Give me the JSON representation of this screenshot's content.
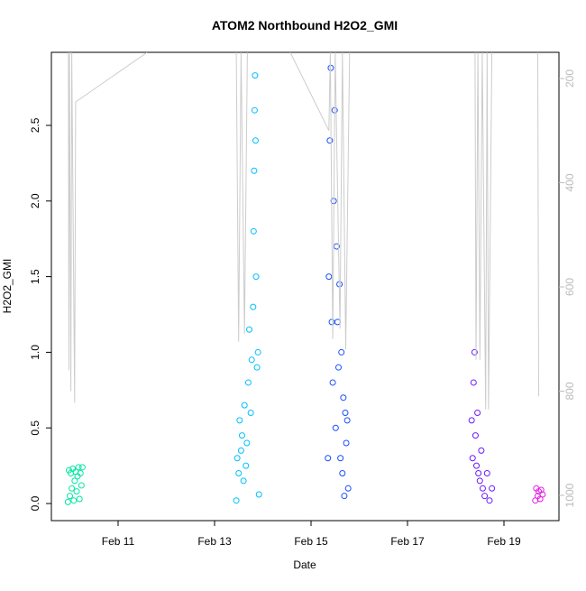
{
  "chart_data": {
    "type": "scatter",
    "title": "ATOM2 Northbound H2O2_GMI",
    "x_label": "Date",
    "y_label": "H2O2_GMI",
    "xlim": [
      9.617,
      20.14
    ],
    "xticks": [
      {
        "value": 11,
        "label": "Feb 11"
      },
      {
        "value": 13,
        "label": "Feb 13"
      },
      {
        "value": 15,
        "label": "Feb 15"
      },
      {
        "value": 17,
        "label": "Feb 17"
      },
      {
        "value": 19,
        "label": "Feb 19"
      }
    ],
    "ylim": [
      -0.113,
      2.983
    ],
    "yticks": [
      {
        "value": 0,
        "label": "0.0"
      },
      0.5,
      {
        "value": 1,
        "label": "1.0"
      },
      1.5,
      {
        "value": 2,
        "label": "2.0"
      },
      2.5
    ],
    "y2lim": [
      1048.5,
      149.8
    ],
    "y2ticks": [
      200,
      400,
      600,
      800,
      1000
    ],
    "y2_color": "#bbbbbb",
    "series": [
      {
        "color": "#00e6a0",
        "x": [
          9.96,
          9.98,
          10.0,
          10.02,
          10.04,
          10.06,
          10.08,
          10.1,
          10.12,
          10.14,
          10.16,
          10.18,
          10.2,
          10.22,
          10.24,
          10.26
        ],
        "values": [
          0.01,
          0.22,
          0.05,
          0.2,
          0.1,
          0.23,
          0.02,
          0.15,
          0.21,
          0.08,
          0.18,
          0.24,
          0.03,
          0.2,
          0.12,
          0.24
        ]
      },
      {
        "color": "#00bfff",
        "x": [
          13.45,
          13.47,
          13.5,
          13.52,
          13.55,
          13.57,
          13.6,
          13.62,
          13.65,
          13.67,
          13.7,
          13.72,
          13.75,
          13.77,
          13.8,
          13.81,
          13.82,
          13.83,
          13.84,
          13.85,
          13.86,
          13.88,
          13.9,
          13.92
        ],
        "values": [
          0.02,
          0.3,
          0.2,
          0.55,
          0.35,
          0.45,
          0.15,
          0.65,
          0.25,
          0.4,
          0.8,
          1.15,
          0.6,
          0.95,
          1.3,
          1.8,
          2.2,
          2.6,
          2.83,
          2.4,
          1.5,
          0.9,
          1.0,
          0.06
        ]
      },
      {
        "color": "#1a4dff",
        "x": [
          15.35,
          15.37,
          15.39,
          15.41,
          15.43,
          15.45,
          15.47,
          15.49,
          15.51,
          15.53,
          15.55,
          15.57,
          15.59,
          15.61,
          15.63,
          15.65,
          15.67,
          15.69,
          15.71,
          15.73,
          15.75,
          15.77
        ],
        "values": [
          0.3,
          1.5,
          2.4,
          2.88,
          1.2,
          0.8,
          2.0,
          2.6,
          0.5,
          1.7,
          1.2,
          0.9,
          1.45,
          0.3,
          1.0,
          0.2,
          0.7,
          0.05,
          0.6,
          0.4,
          0.55,
          0.1
        ]
      },
      {
        "color": "#6a1aff",
        "x": [
          18.33,
          18.35,
          18.37,
          18.39,
          18.41,
          18.43,
          18.45,
          18.47,
          18.5,
          18.53,
          18.56,
          18.6,
          18.65,
          18.7,
          18.75
        ],
        "values": [
          0.55,
          0.3,
          0.8,
          1.0,
          0.45,
          0.25,
          0.6,
          0.2,
          0.15,
          0.35,
          0.1,
          0.05,
          0.2,
          0.02,
          0.1
        ]
      },
      {
        "color": "#e61ae6",
        "x": [
          19.65,
          19.67,
          19.7,
          19.72,
          19.75,
          19.77,
          19.8
        ],
        "values": [
          0.02,
          0.1,
          0.05,
          0.08,
          0.03,
          0.09,
          0.06
        ]
      },
      {
        "type": "line",
        "axis": "y2",
        "color": "#cccccc",
        "x": [
          9.97,
          9.98,
          9.99,
          10.02,
          10.04,
          10.1,
          10.12,
          11.6,
          null,
          13.45,
          13.5,
          13.55,
          13.62,
          13.68,
          null,
          14.57,
          15.37,
          15.4,
          15.45,
          15.5,
          15.6,
          15.65,
          15.72,
          15.8,
          null,
          18.4,
          18.42,
          18.46,
          18.5,
          18.55,
          18.62,
          18.65,
          18.68,
          18.75,
          null,
          19.7,
          19.72
        ],
        "values": [
          150,
          760,
          150,
          800,
          150,
          822,
          245,
          150,
          null,
          150,
          705,
          150,
          690,
          150,
          null,
          150,
          300,
          150,
          700,
          150,
          680,
          150,
          720,
          150,
          null,
          150,
          740,
          150,
          740,
          150,
          835,
          150,
          835,
          150,
          null,
          150,
          810
        ]
      }
    ]
  }
}
